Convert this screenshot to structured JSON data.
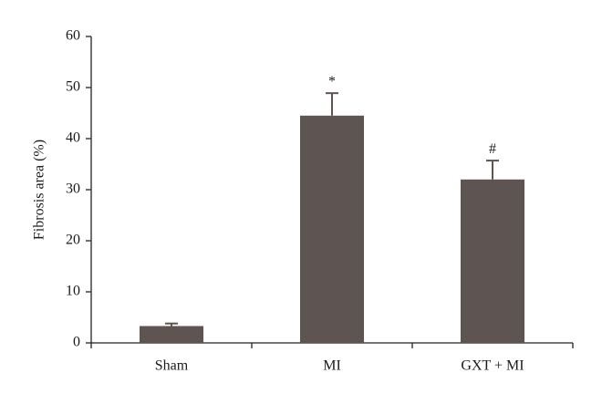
{
  "chart_data": {
    "type": "bar",
    "y_label": "Fibrosis area (%)",
    "categories": [
      "Sham",
      "MI",
      "GXT + MI"
    ],
    "values": [
      3.3,
      44.5,
      32
    ],
    "errors": [
      0.5,
      4.4,
      3.7
    ],
    "significance": [
      null,
      "*",
      "#"
    ],
    "color": "#5e5552",
    "ylim": [
      0,
      60
    ],
    "yticks": [
      0,
      10,
      20,
      30,
      40,
      50,
      60
    ],
    "grid": false
  }
}
